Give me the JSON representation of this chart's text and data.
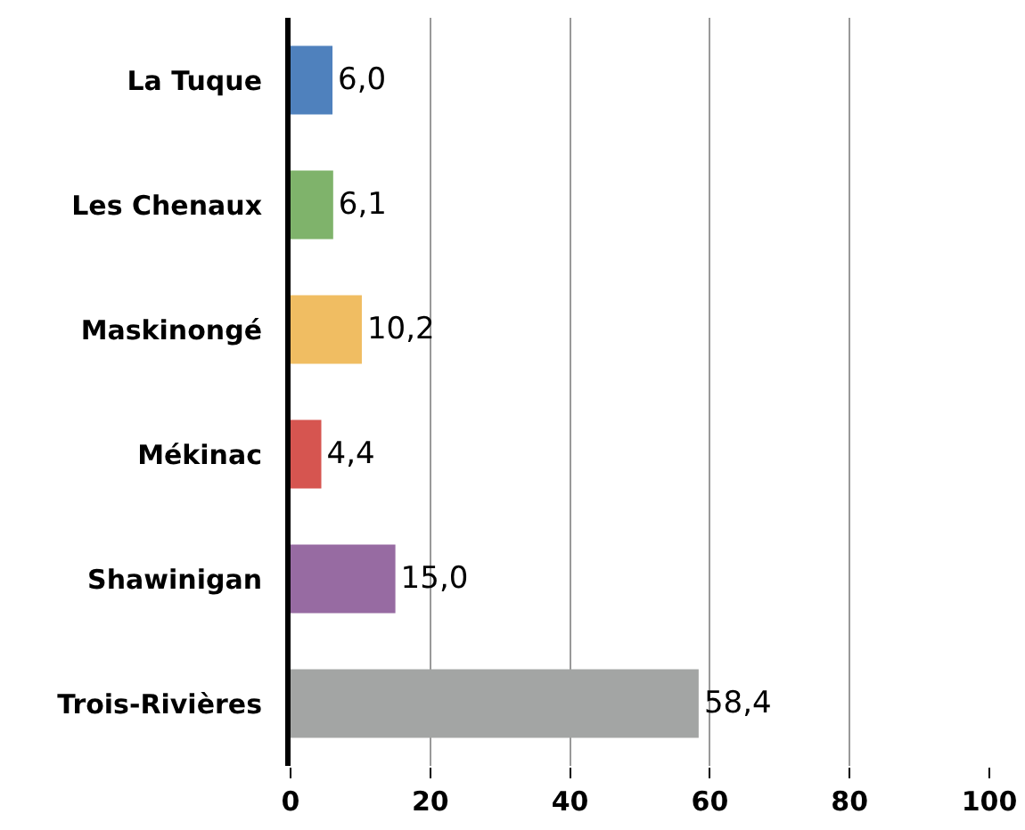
{
  "chart_data": {
    "type": "bar",
    "orientation": "horizontal",
    "categories": [
      "La Tuque",
      "Les Chenaux",
      "Maskinongé",
      "Mékinac",
      "Shawinigan",
      "Trois-Rivières"
    ],
    "values": [
      6.0,
      6.1,
      10.2,
      4.4,
      15.0,
      58.4
    ],
    "value_labels": [
      "6,0",
      "6,1",
      "10,2",
      "4,4",
      "15,0",
      "58,4"
    ],
    "colors": [
      "#4f81bd",
      "#7fb36b",
      "#f0bd62",
      "#d65550",
      "#976ba2",
      "#a3a5a4"
    ],
    "xlim": [
      0,
      100
    ],
    "xticks": [
      0,
      20,
      40,
      60,
      80,
      100
    ],
    "grid": "x"
  }
}
